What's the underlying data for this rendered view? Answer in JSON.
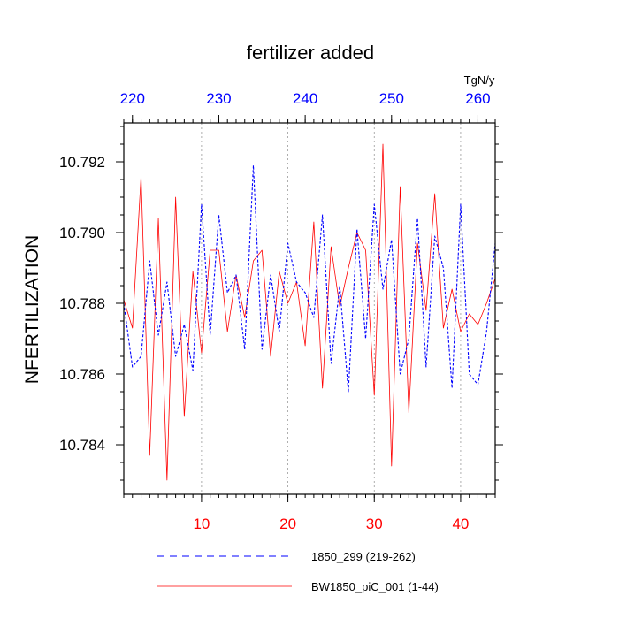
{
  "chart_data": {
    "type": "line",
    "title": "fertilizer added",
    "ylabel": "NFERTILIZATION",
    "top_axis_unit": "TgN/y",
    "xlim": [
      1,
      44
    ],
    "ylim": [
      10.7826,
      10.7931
    ],
    "x_ticks": [
      10,
      20,
      30,
      40
    ],
    "x_minor_step": 1,
    "top_ticks": [
      220,
      230,
      240,
      250,
      260
    ],
    "top_offset": 218,
    "y_ticks": [
      10.784,
      10.786,
      10.788,
      10.79,
      10.792
    ],
    "y_tick_labels": [
      "10.784",
      "10.786",
      "10.788",
      "10.790",
      "10.792"
    ],
    "y_minor_step": 0.0005,
    "grid": "vertical dotted at bottom major ticks",
    "colors": {
      "bottom_axis": "#ff0000",
      "top_axis": "#0000ff"
    },
    "series": [
      {
        "name": "1850_299 (219-262)",
        "color": "#0000ff",
        "dash": "3,2",
        "x": [
          1,
          2,
          3,
          4,
          5,
          6,
          7,
          8,
          9,
          10,
          11,
          12,
          13,
          14,
          15,
          16,
          17,
          18,
          19,
          20,
          21,
          22,
          23,
          24,
          25,
          26,
          27,
          28,
          29,
          30,
          31,
          32,
          33,
          34,
          35,
          36,
          37,
          38,
          39,
          40,
          41,
          42,
          43,
          44
        ],
        "values": [
          10.788,
          10.7862,
          10.7865,
          10.7892,
          10.7871,
          10.7886,
          10.7865,
          10.7874,
          10.7861,
          10.7908,
          10.7871,
          10.7905,
          10.7883,
          10.7888,
          10.7867,
          10.7919,
          10.7867,
          10.7888,
          10.7872,
          10.7897,
          10.7886,
          10.7883,
          10.7876,
          10.7905,
          10.7863,
          10.7885,
          10.7855,
          10.7901,
          10.787,
          10.7908,
          10.7884,
          10.7898,
          10.786,
          10.787,
          10.7904,
          10.7862,
          10.7899,
          10.789,
          10.7856,
          10.7908,
          10.786,
          10.7857,
          10.7872,
          10.7897
        ]
      },
      {
        "name": "BW1850_piC_001 (1-44)",
        "color": "#ff0000",
        "dash": "",
        "x": [
          1,
          2,
          3,
          4,
          5,
          6,
          7,
          8,
          9,
          10,
          11,
          12,
          13,
          14,
          15,
          16,
          17,
          18,
          19,
          20,
          21,
          22,
          23,
          24,
          25,
          26,
          27,
          28,
          29,
          30,
          31,
          32,
          33,
          34,
          35,
          36,
          37,
          38,
          39,
          40,
          41,
          42,
          43,
          44
        ],
        "values": [
          10.7881,
          10.7873,
          10.7916,
          10.7837,
          10.7904,
          10.783,
          10.791,
          10.7848,
          10.7889,
          10.7866,
          10.7895,
          10.7895,
          10.7872,
          10.7888,
          10.7876,
          10.7892,
          10.7895,
          10.7865,
          10.7889,
          10.788,
          10.7886,
          10.7868,
          10.7903,
          10.7856,
          10.7896,
          10.7879,
          10.789,
          10.79,
          10.7895,
          10.7854,
          10.7925,
          10.7834,
          10.7913,
          10.7849,
          10.7897,
          10.7878,
          10.7911,
          10.7873,
          10.7884,
          10.7872,
          10.7877,
          10.7874,
          10.788,
          10.7887
        ]
      }
    ]
  }
}
